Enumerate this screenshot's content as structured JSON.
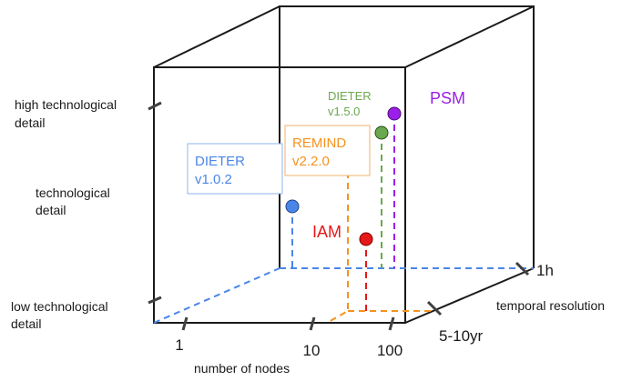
{
  "axes": {
    "y_high": [
      "high technological",
      "detail"
    ],
    "y_mid": [
      "technological",
      "detail"
    ],
    "y_low": [
      "low technological",
      "detail"
    ],
    "x_ticks": [
      "1",
      "10",
      "100"
    ],
    "x_title": "number of nodes",
    "z_title": "temporal resolution",
    "z_near": "5-10yr",
    "z_far": "1h"
  },
  "models": {
    "dieter_old": {
      "lines": [
        "DIETER",
        "v1.0.2"
      ],
      "color": "#4a86e8"
    },
    "remind": {
      "lines": [
        "REMIND",
        "v2.2.0"
      ],
      "color": "#f6921e"
    },
    "dieter_new": {
      "lines": [
        "DIETER",
        "v1.5.0"
      ],
      "color": "#6aa84f"
    },
    "iam": {
      "label": "IAM",
      "color": "#e61919"
    },
    "psm": {
      "label": "PSM",
      "color": "#9b1fe8"
    }
  }
}
